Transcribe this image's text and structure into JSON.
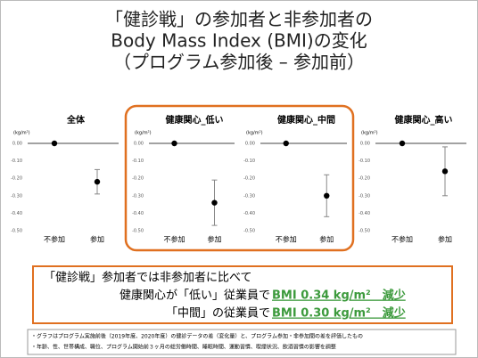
{
  "slide": {
    "title": [
      "「健診戦」の参加者と非参加者の",
      "Body Mass Index (BMI)の変化",
      "（プログラム参加後 – 参加前）"
    ],
    "summary": {
      "line1": "「健診戦」参加者では非参加者に比べて",
      "line2": "健康関心が「低い」従業員で",
      "line2_highlight": "BMI 0.34 kg/m²　減少",
      "line3": "「中間」の従業員で",
      "line3_highlight": "BMI 0.30 kg/m²　減少"
    },
    "footnotes": [
      "・グラフはプログラム実施前後（2019年度、2020年度）の健診データの差（変化量）と、プログラム参加・非参加間の差を評価したもの",
      "・年齢、性、世帯構成、職位、プログラム開始前３ヶ月の総労働時間、睡眠時間、運動習慣、喫煙状況、飲酒習慣の影響を調整"
    ]
  },
  "chart_data": [
    {
      "type": "errorbar",
      "title": "全体",
      "unit": "(kg/m²)",
      "categories": [
        "不参加",
        "参加"
      ],
      "values": [
        0,
        -0.22
      ],
      "errors": [
        null,
        0.07
      ],
      "color": "#000000",
      "ylim": [
        -0.5,
        0
      ],
      "yticks": [
        {
          "value": 0,
          "label": "0.00"
        },
        {
          "value": -0.1,
          "label": "-0.10"
        },
        {
          "value": -0.2,
          "label": "-0.20"
        },
        {
          "value": -0.3,
          "label": "-0.30"
        },
        {
          "value": -0.4,
          "label": "-0.40"
        },
        {
          "value": -0.5,
          "label": "-0.50"
        }
      ]
    },
    {
      "type": "errorbar",
      "title": "健康関心_低い",
      "unit": "(kg/m²)",
      "categories": [
        "不参加",
        "参加"
      ],
      "values": [
        0,
        -0.34
      ],
      "errors": [
        null,
        0.13
      ],
      "color": "#000000",
      "ylim": [
        -0.5,
        0
      ],
      "yticks": [
        {
          "value": 0,
          "label": "0.00"
        },
        {
          "value": -0.1,
          "label": "-0.10"
        },
        {
          "value": -0.2,
          "label": "-0.20"
        },
        {
          "value": -0.3,
          "label": "-0.30"
        },
        {
          "value": -0.4,
          "label": "-0.40"
        },
        {
          "value": -0.5,
          "label": "-0.50"
        }
      ]
    },
    {
      "type": "errorbar",
      "title": "健康関心_中間",
      "unit": "(kg/m²)",
      "categories": [
        "不参加",
        "参加"
      ],
      "values": [
        0,
        -0.3
      ],
      "errors": [
        null,
        0.12
      ],
      "color": "#000000",
      "ylim": [
        -0.5,
        0
      ],
      "yticks": [
        {
          "value": 0,
          "label": "0.00"
        },
        {
          "value": -0.1,
          "label": "-0.10"
        },
        {
          "value": -0.2,
          "label": "-0.20"
        },
        {
          "value": -0.3,
          "label": "-0.30"
        },
        {
          "value": -0.4,
          "label": "-0.40"
        },
        {
          "value": -0.5,
          "label": "-0.50"
        }
      ]
    },
    {
      "type": "errorbar",
      "title": "健康関心_高い",
      "unit": "(kg/m²)",
      "categories": [
        "不参加",
        "参加"
      ],
      "values": [
        0,
        -0.16
      ],
      "errors": [
        null,
        0.14
      ],
      "color": "#000000",
      "ylim": [
        -0.5,
        0
      ],
      "yticks": [
        {
          "value": 0,
          "label": "0.00"
        },
        {
          "value": -0.1,
          "label": "-0.10"
        },
        {
          "value": -0.2,
          "label": "-0.20"
        },
        {
          "value": -0.3,
          "label": "-0.30"
        },
        {
          "value": -0.4,
          "label": "-0.40"
        },
        {
          "value": -0.5,
          "label": "-0.50"
        }
      ]
    }
  ]
}
